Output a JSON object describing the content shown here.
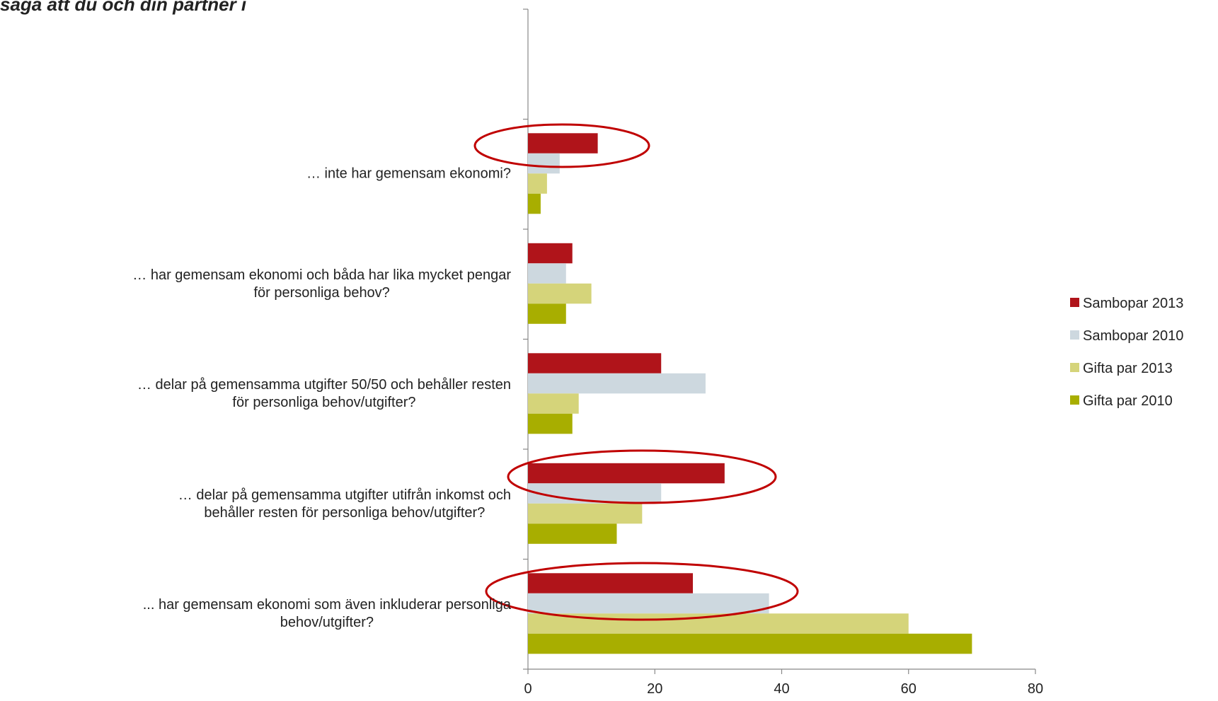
{
  "chart_data": {
    "type": "hbar",
    "title": "säga att du och din partner i",
    "categories": [
      null,
      "… inte har gemensam ekonomi?",
      "… har gemensam ekonomi och båda har lika mycket pengar\nför personliga behov?",
      "… delar på gemensamma utgifter 50/50 och behåller resten\nför personliga behov/utgifter?",
      "… delar på gemensamma utgifter utifrån inkomst och\nbehåller resten för personliga behov/utgifter?",
      "... har gemensam ekonomi som även inkluderar personliga\nbehov/utgifter?"
    ],
    "series": [
      {
        "name": "Sambopar 2013",
        "color": "#b0141a",
        "values": [
          null,
          11,
          7,
          21,
          31,
          26
        ]
      },
      {
        "name": "Sambopar 2010",
        "color": "#cdd8df",
        "values": [
          null,
          5,
          6,
          28,
          21,
          38
        ]
      },
      {
        "name": "Gifta par 2013",
        "color": "#d5d47a",
        "values": [
          null,
          3,
          10,
          8,
          18,
          60
        ]
      },
      {
        "name": "Gifta par 2010",
        "color": "#a8ae00",
        "values": [
          null,
          2,
          6,
          7,
          14,
          70
        ]
      }
    ],
    "xlim": [
      0,
      80
    ],
    "xticks": [
      0,
      20,
      40,
      60,
      80
    ],
    "legend": "right"
  }
}
